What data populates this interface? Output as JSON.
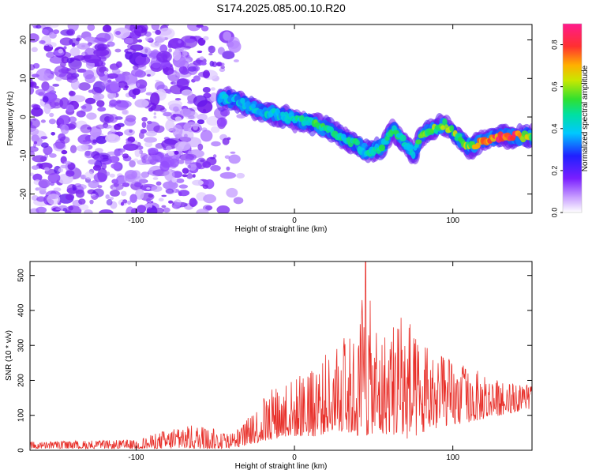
{
  "figure": {
    "title": "S174.2025.085.00.10.R20"
  },
  "chart_data": [
    {
      "type": "heatmap",
      "xlabel": "Height of straight line (km)",
      "ylabel": "Frequency (Hz)",
      "xlim": [
        -167,
        150
      ],
      "ylim": [
        -25,
        24
      ],
      "xticks": [
        -100,
        0,
        100
      ],
      "yticks": [
        -20,
        -10,
        0,
        10,
        20
      ],
      "colorbar": {
        "label": "Normalized spectral amplitude",
        "range": [
          0,
          0.9
        ],
        "ticks": [
          "0.0",
          "0.2",
          "0.4",
          "0.6",
          "0.8"
        ],
        "colormap": "rainbow (violet → blue → cyan → green → yellow → orange → red → magenta)"
      },
      "ridge": {
        "description": "dominant frequency track vs height",
        "x": [
          -45,
          -35,
          -25,
          -15,
          -5,
          5,
          15,
          25,
          35,
          45,
          55,
          62,
          70,
          75,
          80,
          88,
          95,
          100,
          110,
          120,
          130,
          140,
          148
        ],
        "y": [
          5,
          4,
          2,
          1,
          0,
          -1,
          -2,
          -4,
          -6,
          -9,
          -8,
          -3,
          -7,
          -10,
          -5,
          -3,
          -2,
          -4,
          -8,
          -6,
          -5,
          -5,
          -5
        ],
        "amplitude": [
          0.45,
          0.4,
          0.45,
          0.45,
          0.45,
          0.5,
          0.55,
          0.5,
          0.5,
          0.45,
          0.5,
          0.55,
          0.5,
          0.45,
          0.55,
          0.6,
          0.6,
          0.6,
          0.6,
          0.75,
          0.85,
          0.85,
          0.6
        ]
      },
      "background": "scattered low-amplitude (0.0–0.2) noise for heights below about -40 km"
    },
    {
      "type": "line",
      "xlabel": "Height of straight line (km)",
      "ylabel": "SNR (10 * v/v)",
      "xlim": [
        -167,
        150
      ],
      "ylim": [
        0,
        540
      ],
      "xticks": [
        -100,
        0,
        100
      ],
      "yticks": [
        0,
        100,
        200,
        300,
        400,
        500
      ],
      "series": [
        {
          "name": "SNR",
          "color": "#e8302a",
          "envelope_x": [
            -167,
            -100,
            -80,
            -60,
            -45,
            -35,
            -25,
            -15,
            -5,
            5,
            15,
            20,
            25,
            30,
            35,
            40,
            45,
            50,
            55,
            60,
            65,
            70,
            75,
            80,
            85,
            90,
            95,
            100,
            110,
            120,
            130,
            140,
            150
          ],
          "envelope_peak": [
            25,
            30,
            60,
            75,
            55,
            60,
            120,
            180,
            200,
            220,
            240,
            280,
            260,
            350,
            330,
            330,
            540,
            340,
            350,
            360,
            410,
            420,
            330,
            300,
            300,
            280,
            270,
            260,
            240,
            220,
            200,
            190,
            190
          ],
          "envelope_floor": [
            5,
            5,
            5,
            5,
            5,
            10,
            20,
            30,
            40,
            40,
            40,
            50,
            60,
            40,
            50,
            40,
            40,
            50,
            40,
            50,
            40,
            30,
            40,
            40,
            60,
            60,
            70,
            70,
            80,
            90,
            100,
            110,
            120
          ]
        }
      ]
    }
  ]
}
